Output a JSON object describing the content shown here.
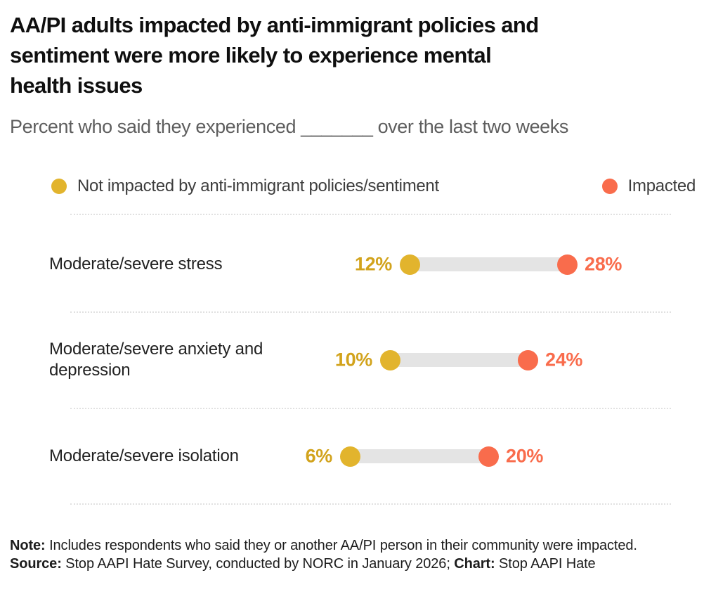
{
  "header": {
    "title_lines": [
      "AA/PI adults impacted by anti-immigrant policies and",
      "sentiment were more likely to experience mental",
      "health issues"
    ],
    "subtitle": "Percent who said they experienced _______ over the last two weeks"
  },
  "legend": {
    "items": [
      {
        "label": "Not impacted by anti-immigrant policies/sentiment",
        "color": "#E2B42D"
      },
      {
        "label": "Impacted",
        "color": "#F96C4C"
      }
    ]
  },
  "chart_data": {
    "type": "scatter",
    "variant": "dumbbell-range-plot",
    "title": "AA/PI adults impacted by anti-immigrant policies and sentiment were more likely to experience mental health issues",
    "subtitle": "Percent who said they experienced _______ over the last two weeks",
    "categories": [
      "Moderate/severe stress",
      "Moderate/severe anxiety and depression",
      "Moderate/severe isolation"
    ],
    "series": [
      {
        "name": "Not impacted by anti-immigrant policies/sentiment",
        "values": [
          12,
          10,
          6
        ],
        "color": "#E2B42D",
        "label_color": "#D2A31C"
      },
      {
        "name": "Impacted",
        "values": [
          28,
          24,
          20
        ],
        "color": "#F96C4C",
        "label_color": "#F96C4C"
      }
    ],
    "value_suffix": "%",
    "xlim": [
      0,
      38
    ],
    "axis_hidden": true,
    "grid": "dotted-row-separators",
    "connector_color": "#E4E4E4",
    "legend_position": "top"
  },
  "note": {
    "segments": [
      {
        "text": "Note:",
        "bold": true
      },
      {
        "text": " Includes respondents who said they or another AA/PI person in their community were impacted. ",
        "bold": false
      },
      {
        "text": "Source:",
        "bold": true
      },
      {
        "text": " Stop AAPI Hate Survey, conducted by NORC in January 2026; ",
        "bold": false
      },
      {
        "text": "Chart:",
        "bold": true
      },
      {
        "text": " Stop AAPI Hate",
        "bold": false
      }
    ]
  }
}
